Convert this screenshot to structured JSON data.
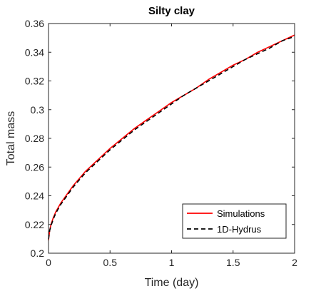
{
  "chart_data": {
    "type": "line",
    "title": "Silty clay",
    "xlabel": "Time (day)",
    "ylabel": "Total mass",
    "xlim": [
      0,
      2
    ],
    "ylim": [
      0.2,
      0.36
    ],
    "xticks": [
      0,
      0.5,
      1,
      1.5,
      2
    ],
    "xtick_labels": [
      "0",
      "0.5",
      "1",
      "1.5",
      "2"
    ],
    "yticks": [
      0.2,
      0.22,
      0.24,
      0.26,
      0.28,
      0.3,
      0.32,
      0.34,
      0.36
    ],
    "ytick_labels": [
      "0.2",
      "0.22",
      "0.24",
      "0.26",
      "0.28",
      "0.3",
      "0.32",
      "0.34",
      "0.36"
    ],
    "grid": false,
    "legend": {
      "position": "bottom-right"
    },
    "series": [
      {
        "name": "Simulations",
        "color": "#ff0000",
        "style": "solid",
        "x": [
          0,
          0.01,
          0.02,
          0.04,
          0.06,
          0.08,
          0.1,
          0.15,
          0.2,
          0.25,
          0.3,
          0.4,
          0.5,
          0.6,
          0.7,
          0.8,
          0.9,
          1.0,
          1.1,
          1.2,
          1.3,
          1.4,
          1.5,
          1.6,
          1.7,
          1.8,
          1.9,
          2.0
        ],
        "y": [
          0.209,
          0.216,
          0.22,
          0.225,
          0.229,
          0.232,
          0.235,
          0.241,
          0.247,
          0.252,
          0.257,
          0.265,
          0.273,
          0.28,
          0.287,
          0.293,
          0.299,
          0.305,
          0.31,
          0.315,
          0.321,
          0.326,
          0.331,
          0.335,
          0.34,
          0.344,
          0.348,
          0.352
        ]
      },
      {
        "name": "1D-Hydrus",
        "color": "#000000",
        "style": "dashed",
        "x": [
          0,
          0.01,
          0.02,
          0.04,
          0.06,
          0.08,
          0.1,
          0.15,
          0.2,
          0.25,
          0.3,
          0.4,
          0.5,
          0.6,
          0.7,
          0.8,
          0.9,
          1.0,
          1.1,
          1.2,
          1.3,
          1.4,
          1.5,
          1.6,
          1.7,
          1.8,
          1.9,
          2.0
        ],
        "y": [
          0.21,
          0.216,
          0.219,
          0.224,
          0.228,
          0.231,
          0.234,
          0.24,
          0.246,
          0.251,
          0.256,
          0.264,
          0.272,
          0.279,
          0.286,
          0.292,
          0.298,
          0.304,
          0.31,
          0.315,
          0.32,
          0.325,
          0.33,
          0.335,
          0.339,
          0.343,
          0.348,
          0.351
        ]
      }
    ]
  }
}
